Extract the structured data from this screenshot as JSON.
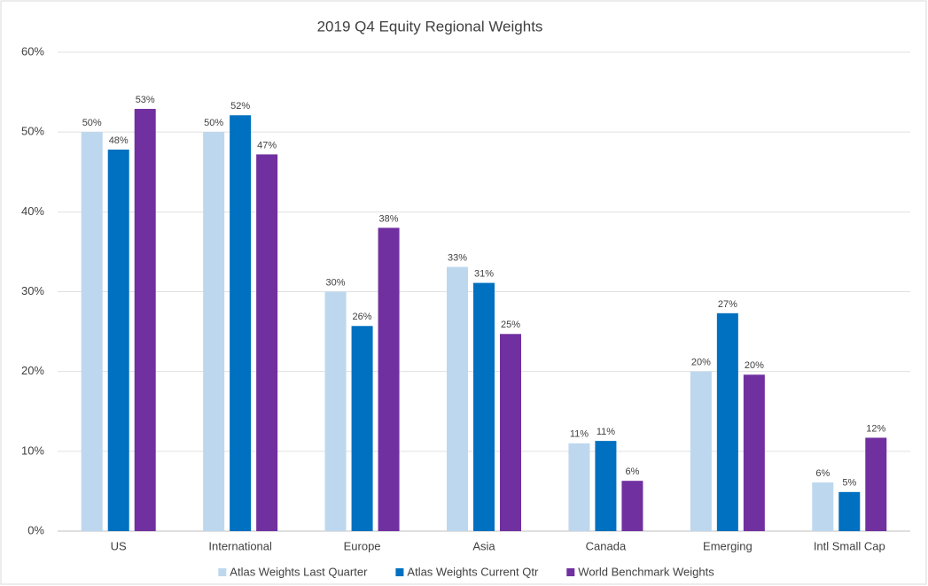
{
  "chart_data": {
    "type": "bar",
    "title": "2019 Q4 Equity Regional Weights",
    "categories": [
      "US",
      "International",
      "Europe",
      "Asia",
      "Canada",
      "Emerging",
      "Intl Small Cap"
    ],
    "series": [
      {
        "name": "Atlas Weights Last Quarter",
        "color": "#bdd7ee",
        "values": [
          50,
          50,
          30,
          33.1,
          11,
          20,
          6.1
        ],
        "value_labels": [
          "50%",
          "50%",
          "30%",
          "33%",
          "11%",
          "20%",
          "6%"
        ]
      },
      {
        "name": "Atlas Weights Current Qtr",
        "color": "#0070c0",
        "values": [
          47.8,
          52.1,
          25.7,
          31.1,
          11.3,
          27.3,
          4.9
        ],
        "value_labels": [
          "48%",
          "52%",
          "26%",
          "31%",
          "11%",
          "27%",
          "5%"
        ]
      },
      {
        "name": "World Benchmark Weights",
        "color": "#7030a0",
        "values": [
          52.9,
          47.2,
          38,
          24.7,
          6.3,
          19.6,
          11.7
        ],
        "value_labels": [
          "53%",
          "47%",
          "38%",
          "25%",
          "6%",
          "20%",
          "12%"
        ]
      }
    ],
    "ylim": [
      0,
      60
    ],
    "yticks": [
      {
        "value": 0,
        "label": "0%"
      },
      {
        "value": 10,
        "label": "10%"
      },
      {
        "value": 20,
        "label": "20%"
      },
      {
        "value": 30,
        "label": "30%"
      },
      {
        "value": 40,
        "label": "40%"
      },
      {
        "value": 50,
        "label": "50%"
      },
      {
        "value": 60,
        "label": "60%"
      }
    ],
    "grid": true,
    "legend": "bottom"
  }
}
